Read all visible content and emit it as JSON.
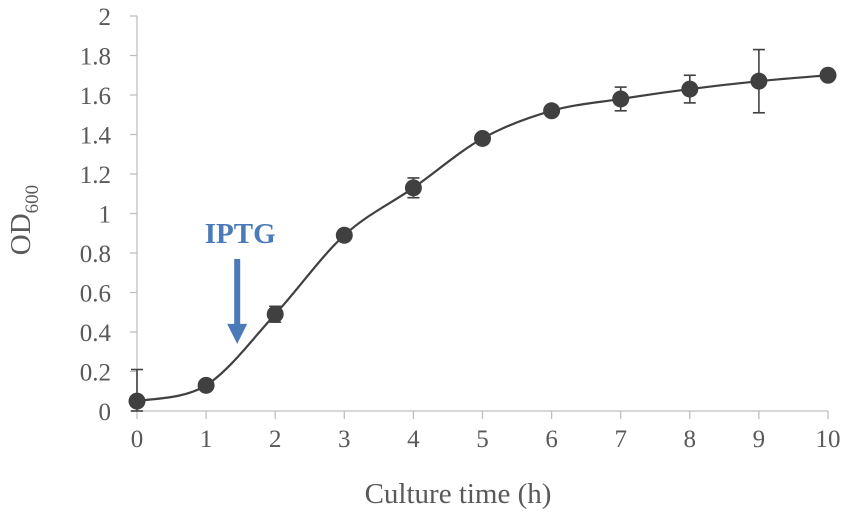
{
  "chart_data": {
    "type": "line",
    "title": "",
    "xlabel": "Culture time (h)",
    "ylabel": "OD",
    "ylabel_subscript": "600",
    "xlim": [
      0,
      10
    ],
    "ylim": [
      0,
      2
    ],
    "x_ticks": [
      "0",
      "1",
      "2",
      "3",
      "4",
      "5",
      "6",
      "7",
      "8",
      "9",
      "10"
    ],
    "y_ticks": [
      "0",
      "0.2",
      "0.4",
      "0.6",
      "0.8",
      "1",
      "1.2",
      "1.4",
      "1.6",
      "1.8",
      "2"
    ],
    "grid": false,
    "legend": "none",
    "series": [
      {
        "x": [
          0,
          1,
          2,
          3,
          4,
          5,
          6,
          7,
          8,
          9,
          10
        ],
        "values": [
          0.05,
          0.13,
          0.49,
          0.89,
          1.13,
          1.38,
          1.52,
          1.58,
          1.63,
          1.67,
          1.7
        ],
        "error": [
          0.16,
          0.01,
          0.04,
          0.02,
          0.05,
          0.02,
          0.02,
          0.06,
          0.07,
          0.16,
          0.01
        ],
        "color": "#404040"
      }
    ],
    "annotations": [
      {
        "text": "IPTG",
        "x": 1.45,
        "arrow_from_y": 0.77,
        "arrow_to_y": 0.34,
        "color": "#4a7ab8"
      }
    ]
  }
}
